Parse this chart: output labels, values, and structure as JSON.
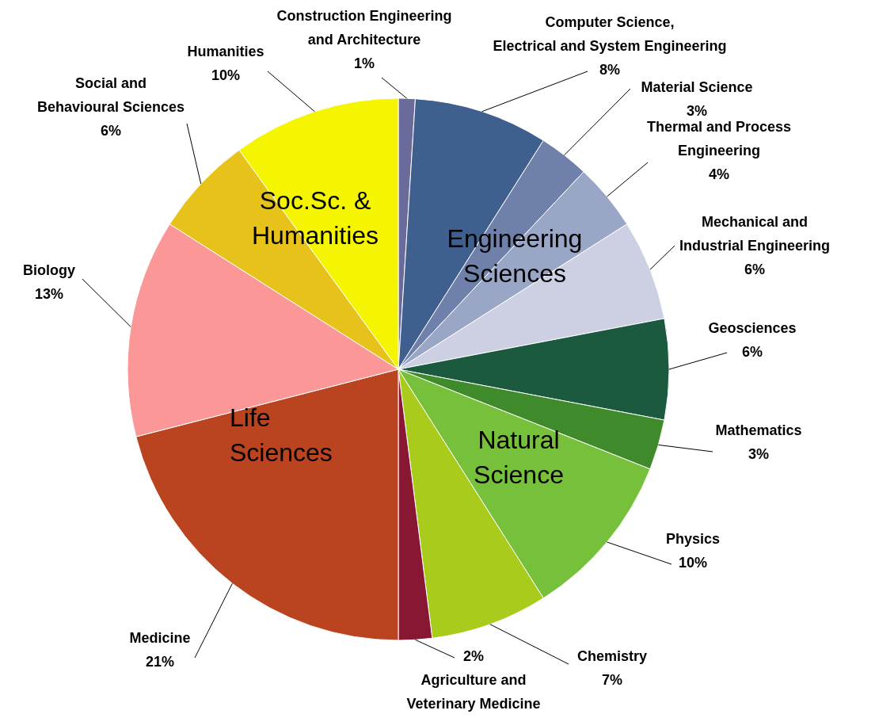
{
  "chart_data": {
    "type": "pie",
    "categories": [
      "Construction Engineering\nand Architecture",
      "Computer Science,\nElectrical and System Engineering",
      "Material Science",
      "Thermal and Process\nEngineering",
      "Mechanical and\nIndustrial Engineering",
      "Geosciences",
      "Mathematics",
      "Physics",
      "Chemistry",
      "Agriculture and\nVeterinary Medicine",
      "Medicine",
      "Biology",
      "Social and\nBehavioural Sciences",
      "Humanities"
    ],
    "values": [
      1,
      8,
      3,
      4,
      6,
      6,
      3,
      10,
      7,
      2,
      21,
      13,
      6,
      10
    ],
    "value_labels": [
      "1%",
      "8%",
      "3%",
      "4%",
      "6%",
      "6%",
      "3%",
      "10%",
      "7%",
      "2%",
      "21%",
      "13%",
      "6%",
      "10%"
    ],
    "colors": [
      "#6b6b9b",
      "#3f5f8f",
      "#6f80aa",
      "#9aa6c6",
      "#ccd0e2",
      "#1b5a3e",
      "#3f8a2b",
      "#77c03b",
      "#a8cb1c",
      "#871733",
      "#bb4420",
      "#fb9797",
      "#e6c21a",
      "#f5f500"
    ],
    "annotations": [
      "Soc.Sc. &\nHumanities",
      "Engineering\nSciences",
      "Natural\nScience",
      "Life\nSciences"
    ],
    "legend": false
  }
}
